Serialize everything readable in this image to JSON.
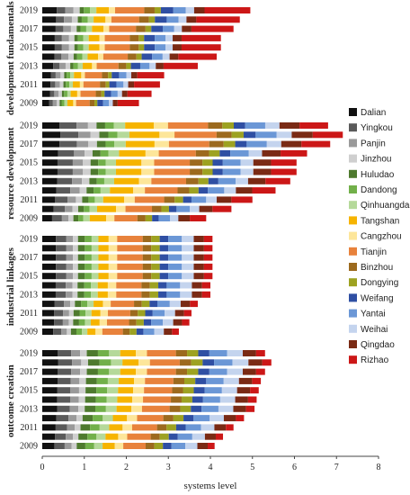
{
  "chart_data": {
    "type": "bar",
    "orientation": "horizontal",
    "stacked": true,
    "title": "",
    "xlabel": "systems level",
    "xlim": [
      0,
      8
    ],
    "xticks": [
      0,
      1,
      2,
      3,
      4,
      5,
      6,
      7,
      8
    ],
    "legend_position": "right",
    "years": [
      2019,
      2018,
      2017,
      2016,
      2015,
      2014,
      2013,
      2012,
      2011,
      2010,
      2009
    ],
    "year_tick_labels": [
      "2019",
      "2017",
      "2015",
      "2013",
      "2011",
      "2009"
    ],
    "series": [
      {
        "name": "Dalian",
        "color": "#111111"
      },
      {
        "name": "Yingkou",
        "color": "#5a5a5a"
      },
      {
        "name": "Panjin",
        "color": "#9a9a9a"
      },
      {
        "name": "Jinzhou",
        "color": "#cfcfcf"
      },
      {
        "name": "Huludao",
        "color": "#4e7a2e"
      },
      {
        "name": "Dandong",
        "color": "#72b04a"
      },
      {
        "name": "Qinhuangdao",
        "color": "#b5d99a"
      },
      {
        "name": "Tangshan",
        "color": "#f6b400"
      },
      {
        "name": "Cangzhou",
        "color": "#fde69a"
      },
      {
        "name": "Tianjin",
        "color": "#e8823c"
      },
      {
        "name": "Binzhou",
        "color": "#9c6a1e"
      },
      {
        "name": "Dongying",
        "color": "#9da221"
      },
      {
        "name": "Weifang",
        "color": "#2f4fa3"
      },
      {
        "name": "Yantai",
        "color": "#6b97d6"
      },
      {
        "name": "Weihai",
        "color": "#c4d4ee"
      },
      {
        "name": "Qingdao",
        "color": "#7a2a14"
      },
      {
        "name": "Rizhao",
        "color": "#cc1717"
      }
    ],
    "panels": [
      {
        "name": "development fundamentals",
        "totals": [
          4.95,
          4.7,
          4.55,
          4.25,
          4.25,
          4.15,
          3.7,
          2.9,
          2.8,
          2.6,
          2.3
        ]
      },
      {
        "name": "resource development",
        "totals": [
          6.8,
          7.15,
          6.85,
          6.3,
          6.05,
          6.05,
          5.9,
          5.55,
          5.0,
          4.5,
          3.9
        ]
      },
      {
        "name": "industrial linkages",
        "totals": [
          4.05,
          4.05,
          4.05,
          4.05,
          4.05,
          4.0,
          4.0,
          3.7,
          3.55,
          3.5,
          3.25
        ]
      },
      {
        "name": "outcome creation",
        "totals": [
          5.3,
          5.45,
          5.3,
          5.2,
          5.15,
          5.1,
          5.05,
          4.8,
          4.55,
          4.3,
          4.1
        ]
      }
    ],
    "share_profiles": {
      "development fundamentals": [
        0.07,
        0.04,
        0.04,
        0.03,
        0.02,
        0.03,
        0.03,
        0.06,
        0.03,
        0.14,
        0.05,
        0.03,
        0.06,
        0.06,
        0.04,
        0.05,
        0.22
      ],
      "resource development": [
        0.06,
        0.06,
        0.04,
        0.03,
        0.03,
        0.03,
        0.04,
        0.1,
        0.05,
        0.14,
        0.05,
        0.04,
        0.04,
        0.07,
        0.05,
        0.07,
        0.1
      ],
      "industrial linkages": [
        0.08,
        0.06,
        0.04,
        0.03,
        0.04,
        0.04,
        0.04,
        0.06,
        0.05,
        0.15,
        0.05,
        0.05,
        0.05,
        0.08,
        0.07,
        0.06,
        0.05
      ],
      "outcome creation": [
        0.07,
        0.06,
        0.04,
        0.03,
        0.05,
        0.05,
        0.05,
        0.07,
        0.05,
        0.13,
        0.05,
        0.05,
        0.05,
        0.08,
        0.07,
        0.06,
        0.04
      ]
    }
  }
}
